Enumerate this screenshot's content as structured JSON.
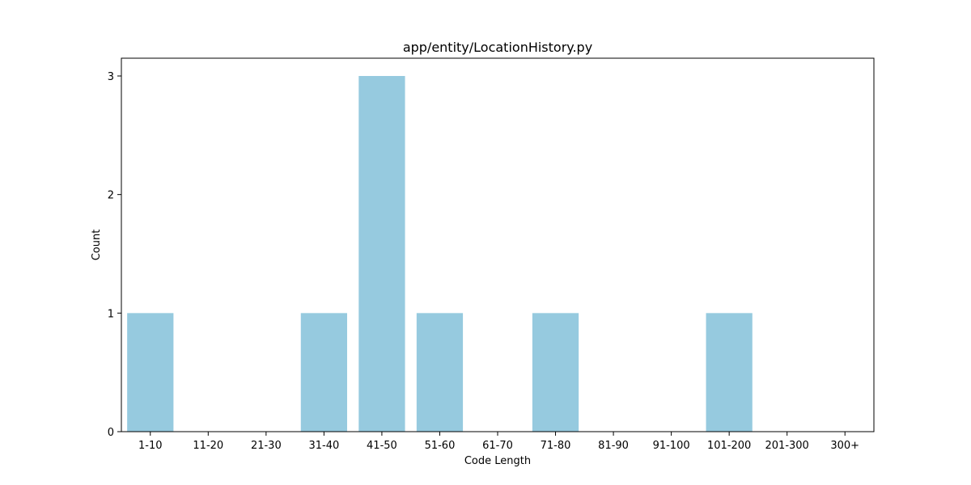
{
  "chart_data": {
    "type": "bar",
    "title": "app/entity/LocationHistory.py",
    "xlabel": "Code Length",
    "ylabel": "Count",
    "categories": [
      "1-10",
      "11-20",
      "21-30",
      "31-40",
      "41-50",
      "51-60",
      "61-70",
      "71-80",
      "81-90",
      "91-100",
      "101-200",
      "201-300",
      "300+"
    ],
    "values": [
      1,
      0,
      0,
      1,
      3,
      1,
      0,
      1,
      0,
      0,
      1,
      0,
      0
    ],
    "ylim": [
      0,
      3.15
    ],
    "yticks": [
      0,
      1,
      2,
      3
    ],
    "grid": false,
    "legend": "none",
    "bar_color": "#96cadf",
    "axis_color": "#000000"
  }
}
